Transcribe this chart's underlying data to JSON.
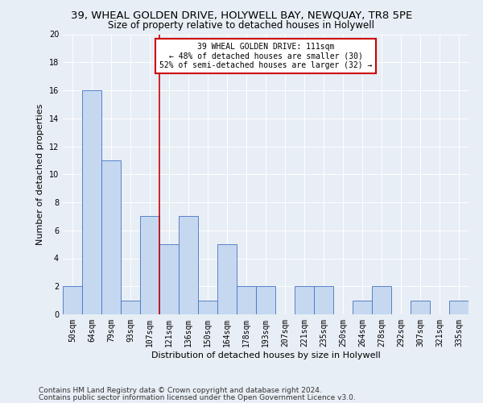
{
  "title1": "39, WHEAL GOLDEN DRIVE, HOLYWELL BAY, NEWQUAY, TR8 5PE",
  "title2": "Size of property relative to detached houses in Holywell",
  "xlabel": "Distribution of detached houses by size in Holywell",
  "ylabel": "Number of detached properties",
  "categories": [
    "50sqm",
    "64sqm",
    "79sqm",
    "93sqm",
    "107sqm",
    "121sqm",
    "136sqm",
    "150sqm",
    "164sqm",
    "178sqm",
    "193sqm",
    "207sqm",
    "221sqm",
    "235sqm",
    "250sqm",
    "264sqm",
    "278sqm",
    "292sqm",
    "307sqm",
    "321sqm",
    "335sqm"
  ],
  "values": [
    2,
    16,
    11,
    1,
    7,
    5,
    7,
    1,
    5,
    2,
    2,
    0,
    2,
    2,
    0,
    1,
    2,
    0,
    1,
    0,
    1
  ],
  "bar_color": "#c5d8f0",
  "bar_edge_color": "#4472c4",
  "vline_x": 4.5,
  "annotation_line1": "39 WHEAL GOLDEN DRIVE: 111sqm",
  "annotation_line2": "← 48% of detached houses are smaller (30)",
  "annotation_line3": "52% of semi-detached houses are larger (32) →",
  "annotation_box_color": "#ffffff",
  "annotation_box_edge": "#cc0000",
  "vline_color": "#cc0000",
  "ylim": [
    0,
    20
  ],
  "yticks": [
    0,
    2,
    4,
    6,
    8,
    10,
    12,
    14,
    16,
    18,
    20
  ],
  "footnote1": "Contains HM Land Registry data © Crown copyright and database right 2024.",
  "footnote2": "Contains public sector information licensed under the Open Government Licence v3.0.",
  "bg_color": "#e8eef5",
  "plot_bg_color": "#e8eef5",
  "title1_fontsize": 9.5,
  "title2_fontsize": 8.5,
  "xlabel_fontsize": 8,
  "ylabel_fontsize": 8,
  "tick_fontsize": 7,
  "annot_fontsize": 7,
  "footnote_fontsize": 6.5
}
